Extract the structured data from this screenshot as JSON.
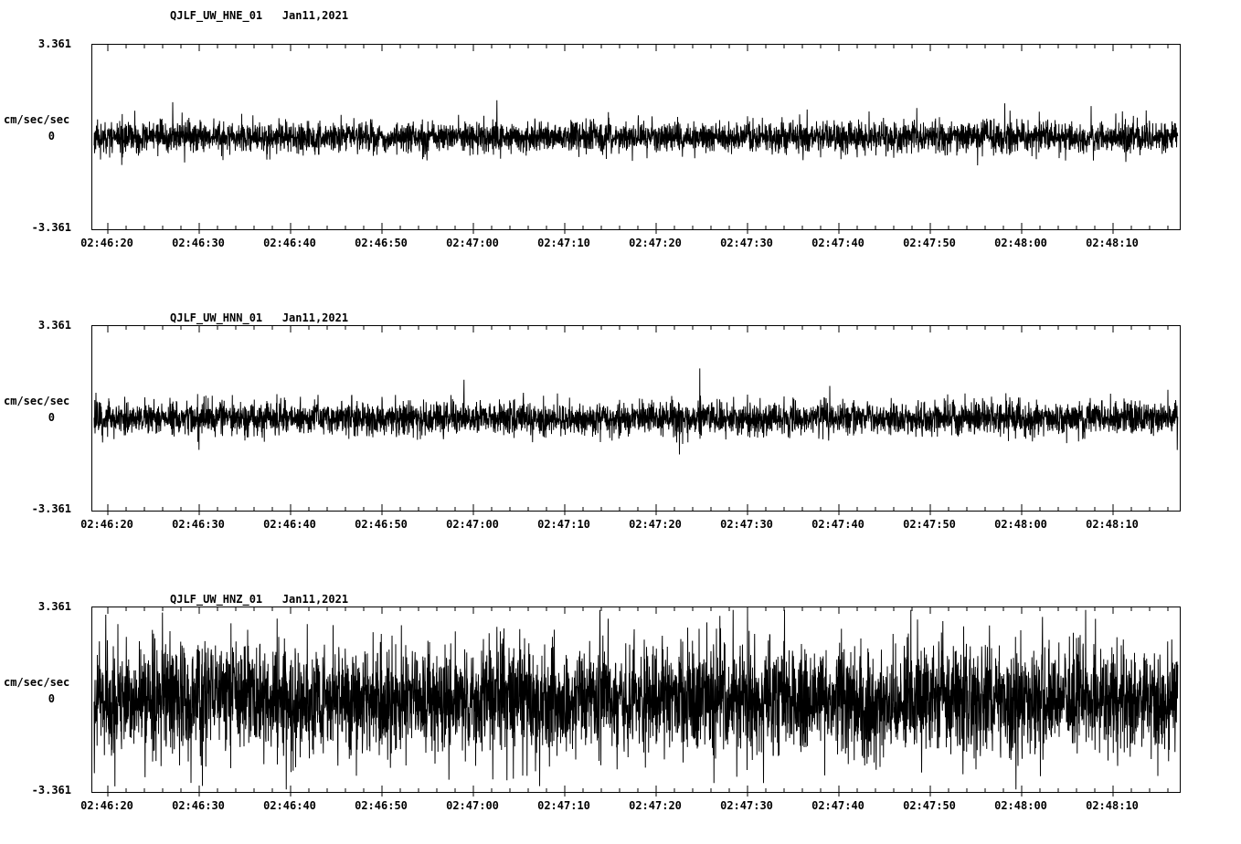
{
  "figure": {
    "background": "#ffffff",
    "text_color": "#000000",
    "trace_color": "#000000"
  },
  "chart_data": [
    {
      "type": "line",
      "title": "QJLF_UW_HNE_01   Jan11,2021",
      "station": "QJLF_UW_HNE_01",
      "date": "Jan11,2021",
      "ylabel": "cm/sec/sec",
      "ylim": [
        -3.361,
        3.361
      ],
      "ytick_labels": [
        "3.361",
        "0",
        "-3.361"
      ],
      "xtick_labels": [
        "02:46:20",
        "02:46:30",
        "02:46:40",
        "02:46:50",
        "02:47:00",
        "02:47:10",
        "02:47:20",
        "02:47:30",
        "02:47:40",
        "02:47:50",
        "02:48:00",
        "02:48:10"
      ],
      "x_major_interval_seconds": 10,
      "x_minor_interval_seconds": 2,
      "time_window": {
        "start": "02:46:18",
        "end": "02:48:17"
      },
      "line_color": "#000000",
      "grid": false,
      "legend": "none",
      "signal": {
        "kind": "continuous-seismic-noise",
        "noise_rms": 0.27,
        "noise_peak": 1.55,
        "spike_prob": 0.02,
        "spike_factor": 2.0,
        "seed": 11
      }
    },
    {
      "type": "line",
      "title": "QJLF_UW_HNN_01   Jan11,2021",
      "station": "QJLF_UW_HNN_01",
      "date": "Jan11,2021",
      "ylabel": "cm/sec/sec",
      "ylim": [
        -3.361,
        3.361
      ],
      "ytick_labels": [
        "3.361",
        "0",
        "-3.361"
      ],
      "xtick_labels": [
        "02:46:20",
        "02:46:30",
        "02:46:40",
        "02:46:50",
        "02:47:00",
        "02:47:10",
        "02:47:20",
        "02:47:30",
        "02:47:40",
        "02:47:50",
        "02:48:00",
        "02:48:10"
      ],
      "x_major_interval_seconds": 10,
      "x_minor_interval_seconds": 2,
      "time_window": {
        "start": "02:46:18",
        "end": "02:48:17"
      },
      "line_color": "#000000",
      "grid": false,
      "legend": "none",
      "signal": {
        "kind": "continuous-seismic-noise",
        "noise_rms": 0.3,
        "noise_peak": 1.85,
        "spike_prob": 0.02,
        "spike_factor": 2.0,
        "seed": 22
      }
    },
    {
      "type": "line",
      "title": "QJLF_UW_HNZ_01   Jan11,2021",
      "station": "QJLF_UW_HNZ_01",
      "date": "Jan11,2021",
      "ylabel": "cm/sec/sec",
      "ylim": [
        -3.361,
        3.361
      ],
      "ytick_labels": [
        "3.361",
        "0",
        "-3.361"
      ],
      "xtick_labels": [
        "02:46:20",
        "02:46:30",
        "02:46:40",
        "02:46:50",
        "02:47:00",
        "02:47:10",
        "02:47:20",
        "02:47:30",
        "02:47:40",
        "02:47:50",
        "02:48:00",
        "02:48:10"
      ],
      "x_major_interval_seconds": 10,
      "x_minor_interval_seconds": 2,
      "time_window": {
        "start": "02:46:18",
        "end": "02:48:17"
      },
      "line_color": "#000000",
      "grid": false,
      "legend": "none",
      "signal": {
        "kind": "continuous-seismic-noise",
        "noise_rms": 1.0,
        "noise_peak": 3.3,
        "spike_prob": 0.015,
        "spike_factor": 1.7,
        "seed": 33
      }
    }
  ]
}
